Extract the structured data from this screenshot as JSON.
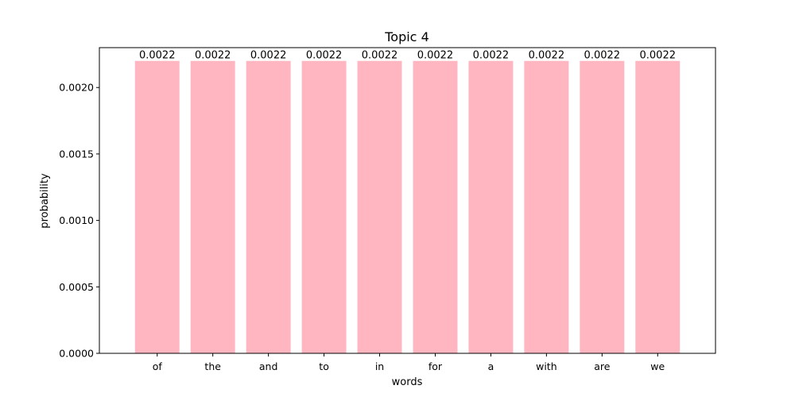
{
  "chart_data": {
    "type": "bar",
    "title": "Topic 4",
    "xlabel": "words",
    "ylabel": "probability",
    "categories": [
      "of",
      "the",
      "and",
      "to",
      "in",
      "for",
      "a",
      "with",
      "are",
      "we"
    ],
    "values": [
      0.0022,
      0.0022,
      0.0022,
      0.0022,
      0.0022,
      0.0022,
      0.0022,
      0.0022,
      0.0022,
      0.0022
    ],
    "data_labels": [
      "0.0022",
      "0.0022",
      "0.0022",
      "0.0022",
      "0.0022",
      "0.0022",
      "0.0022",
      "0.0022",
      "0.0022",
      "0.0022"
    ],
    "ylim": [
      0,
      0.0023
    ],
    "yticks": [
      0,
      0.0005,
      0.001,
      0.0015,
      0.002
    ],
    "ytick_labels": [
      "0.0000",
      "0.0005",
      "0.0010",
      "0.0015",
      "0.0020"
    ],
    "bar_color": "#ffb6c1",
    "grid": false,
    "legend": "none"
  }
}
